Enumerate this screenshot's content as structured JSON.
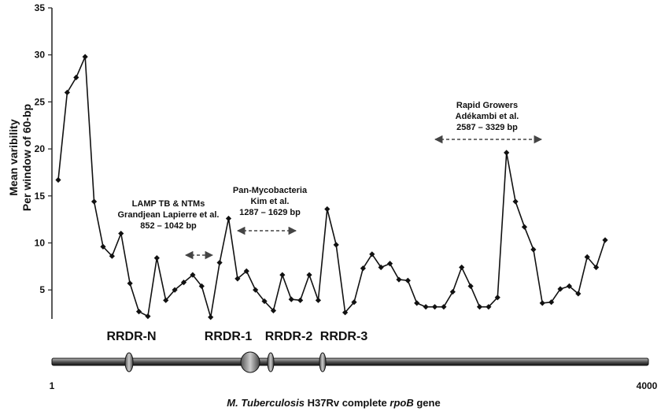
{
  "chart_data": {
    "type": "line",
    "ylabel_line1": "Mean varibility",
    "ylabel_line2": "Per window of 60-bp",
    "ylim": [
      2,
      35
    ],
    "y_ticks": [
      "5",
      "10",
      "15",
      "20",
      "25",
      "30",
      "35"
    ],
    "grid": false,
    "y": [
      16.7,
      26.0,
      27.6,
      29.8,
      14.4,
      9.6,
      8.6,
      11.0,
      5.7,
      2.7,
      2.2,
      8.4,
      3.9,
      5.0,
      5.8,
      6.6,
      5.4,
      2.1,
      7.9,
      12.6,
      6.2,
      7.0,
      5.0,
      3.8,
      2.8,
      6.6,
      4.0,
      3.9,
      6.6,
      3.9,
      13.6,
      9.8,
      2.6,
      3.7,
      7.3,
      8.8,
      7.4,
      7.8,
      6.1,
      6.0,
      3.6,
      3.2,
      3.2,
      3.2,
      4.8,
      7.4,
      5.4,
      3.2,
      3.2,
      4.2,
      19.6,
      14.4,
      11.7,
      9.3,
      3.6,
      3.7,
      5.1,
      5.4,
      4.6,
      8.5,
      7.4,
      10.3
    ],
    "annotations": [
      {
        "lines": [
          "LAMP TB & NTMs",
          "Grandjean Lapierre et al.",
          "852 – 1042 bp"
        ]
      },
      {
        "lines": [
          "Pan-Mycobacteria",
          "Kim et al.",
          "1287 – 1629 bp"
        ]
      },
      {
        "lines": [
          "Rapid Growers",
          "Adékambi et al.",
          "2587 – 3329 bp"
        ]
      }
    ]
  },
  "regions": [
    {
      "label": "RRDR-N"
    },
    {
      "label": "RRDR-1"
    },
    {
      "label": "RRDR-2"
    },
    {
      "label": "RRDR-3"
    }
  ],
  "gene_axis": {
    "start_label": "1",
    "end_label": "4000",
    "caption_italic_1": "M. Tuberculosis",
    "caption_plain": " H37Rv complete ",
    "caption_italic_2": "rpoB",
    "caption_tail": " gene"
  }
}
